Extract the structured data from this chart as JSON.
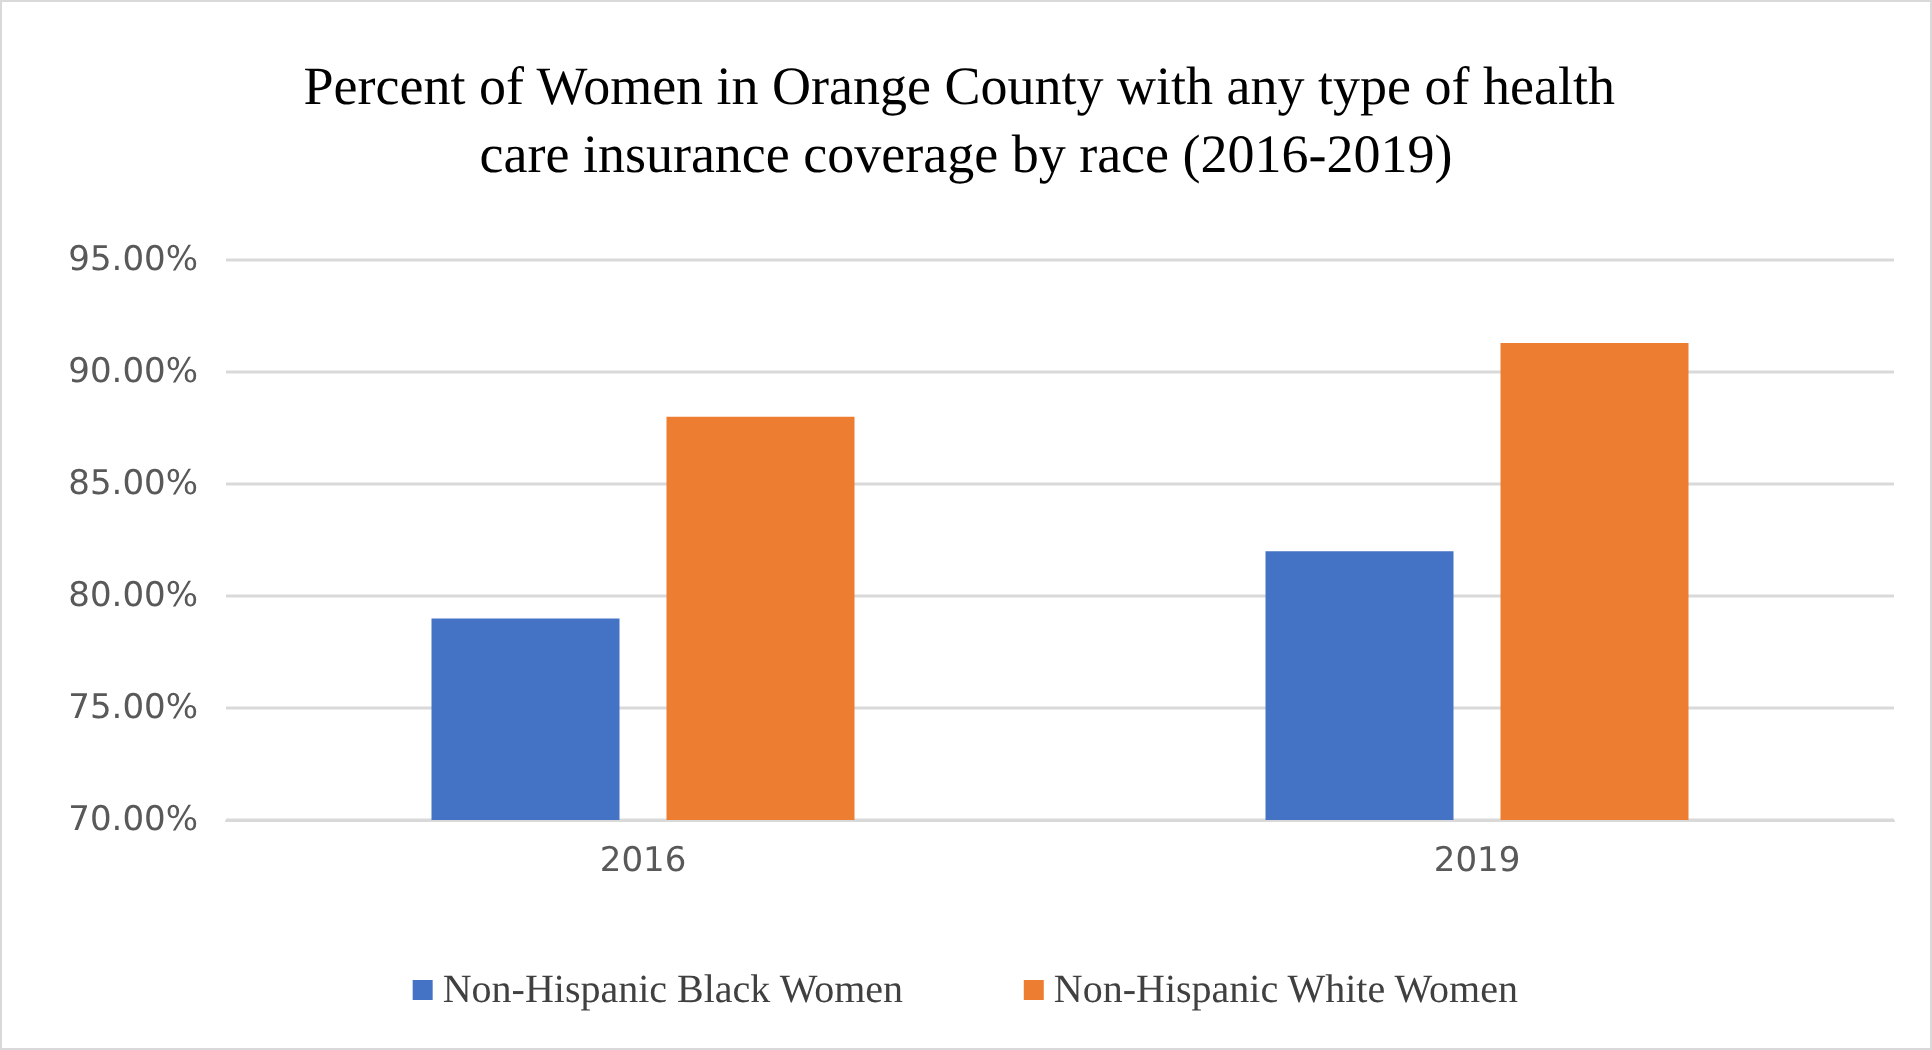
{
  "chart_data": {
    "type": "bar",
    "title": "Percent of Women in Orange County with any type of health care insurance coverage by race (2016-2019)",
    "categories": [
      "2016",
      "2019"
    ],
    "series": [
      {
        "name": "Non-Hispanic Black Women",
        "color": "#4472c4",
        "values": [
          79.0,
          82.0
        ]
      },
      {
        "name": "Non-Hispanic White Women",
        "color": "#ed7d31",
        "values": [
          88.0,
          91.3
        ]
      }
    ],
    "ylim": [
      70,
      95
    ],
    "yticks": [
      {
        "value": 70,
        "label": "70.00%"
      },
      {
        "value": 75,
        "label": "75.00%"
      },
      {
        "value": 80,
        "label": "80.00%"
      },
      {
        "value": 85,
        "label": "85.00%"
      },
      {
        "value": 90,
        "label": "90.00%"
      },
      {
        "value": 95,
        "label": "95.00%"
      }
    ],
    "grid": "y",
    "legend": "bottom"
  }
}
